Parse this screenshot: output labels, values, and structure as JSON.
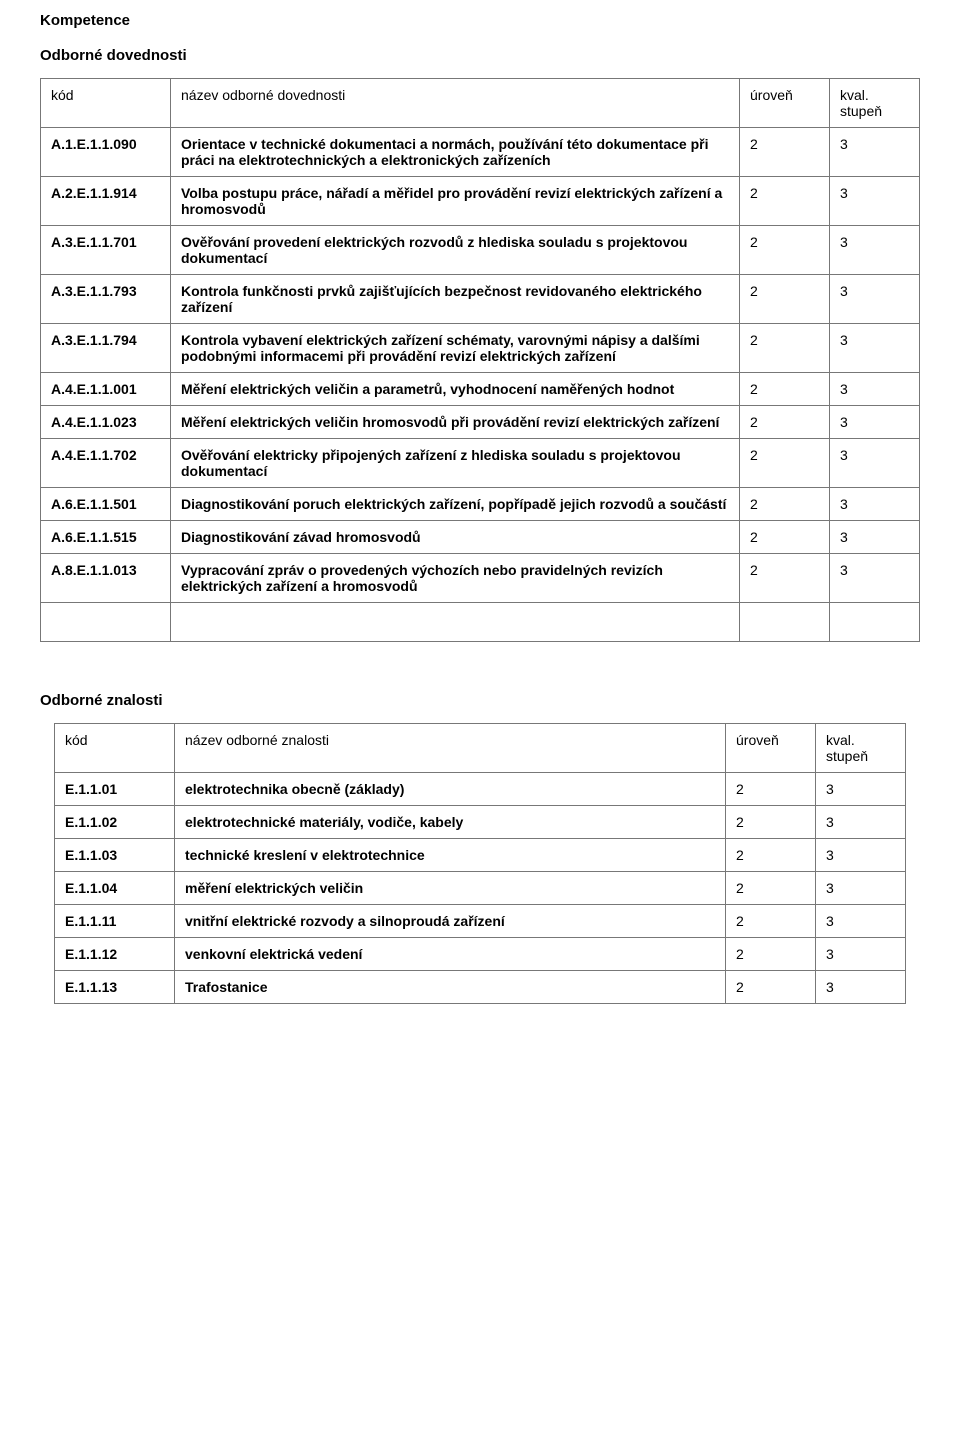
{
  "headings": {
    "competence": "Kompetence",
    "skills": "Odborné dovednosti",
    "knowledge": "Odborné znalosti"
  },
  "skills_table": {
    "headers": {
      "code": "kód",
      "name": "název odborné dovednosti",
      "level": "úroveň",
      "degree": "kval. stupeň"
    },
    "rows": [
      {
        "code": "A.1.E.1.1.090",
        "name": "Orientace v technické dokumentaci a normách, používání této dokumentace při práci na elektrotechnických a elektronických zařízeních",
        "level": "2",
        "degree": "3"
      },
      {
        "code": "A.2.E.1.1.914",
        "name": "Volba postupu práce, nářadí a měřidel pro provádění revizí elektrických zařízení a hromosvodů",
        "level": "2",
        "degree": "3"
      },
      {
        "code": "A.3.E.1.1.701",
        "name": "Ověřování provedení elektrických rozvodů z hlediska souladu s projektovou dokumentací",
        "level": "2",
        "degree": "3"
      },
      {
        "code": "A.3.E.1.1.793",
        "name": "Kontrola funkčnosti prvků zajišťujících bezpečnost revidovaného elektrického zařízení",
        "level": "2",
        "degree": "3"
      },
      {
        "code": "A.3.E.1.1.794",
        "name": "Kontrola vybavení elektrických zařízení schématy, varovnými nápisy a dalšími podobnými informacemi při provádění revizí elektrických zařízení",
        "level": "2",
        "degree": "3"
      },
      {
        "code": "A.4.E.1.1.001",
        "name": "Měření elektrických veličin a parametrů, vyhodnocení naměřených hodnot",
        "level": "2",
        "degree": "3"
      },
      {
        "code": "A.4.E.1.1.023",
        "name": "Měření elektrických veličin hromosvodů při provádění revizí elektrických zařízení",
        "level": "2",
        "degree": "3"
      },
      {
        "code": "A.4.E.1.1.702",
        "name": "Ověřování elektricky připojených zařízení z hlediska souladu s projektovou dokumentací",
        "level": "2",
        "degree": "3"
      },
      {
        "code": "A.6.E.1.1.501",
        "name": "Diagnostikování poruch elektrických zařízení, popřípadě jejich rozvodů a součástí",
        "level": "2",
        "degree": "3"
      },
      {
        "code": "A.6.E.1.1.515",
        "name": "Diagnostikování závad hromosvodů",
        "level": "2",
        "degree": "3"
      },
      {
        "code": "A.8.E.1.1.013",
        "name": "Vypracování zpráv o provedených výchozích nebo pravidelných revizích elektrických zařízení a hromosvodů",
        "level": "2",
        "degree": "3"
      }
    ]
  },
  "knowledge_table": {
    "headers": {
      "code": "kód",
      "name": "název odborné znalosti",
      "level": "úroveň",
      "degree": "kval. stupeň"
    },
    "rows": [
      {
        "code": "E.1.1.01",
        "name": "elektrotechnika obecně (základy)",
        "level": "2",
        "degree": "3"
      },
      {
        "code": "E.1.1.02",
        "name": "elektrotechnické materiály, vodiče, kabely",
        "level": "2",
        "degree": "3"
      },
      {
        "code": "E.1.1.03",
        "name": "technické kreslení v elektrotechnice",
        "level": "2",
        "degree": "3"
      },
      {
        "code": "E.1.1.04",
        "name": "měření elektrických veličin",
        "level": "2",
        "degree": "3"
      },
      {
        "code": "E.1.1.11",
        "name": "vnitřní elektrické rozvody a silnoproudá zařízení",
        "level": "2",
        "degree": "3"
      },
      {
        "code": "E.1.1.12",
        "name": "venkovní elektrická vedení",
        "level": "2",
        "degree": "3"
      },
      {
        "code": "E.1.1.13",
        "name": "Trafostanice",
        "level": "2",
        "degree": "3"
      }
    ]
  }
}
